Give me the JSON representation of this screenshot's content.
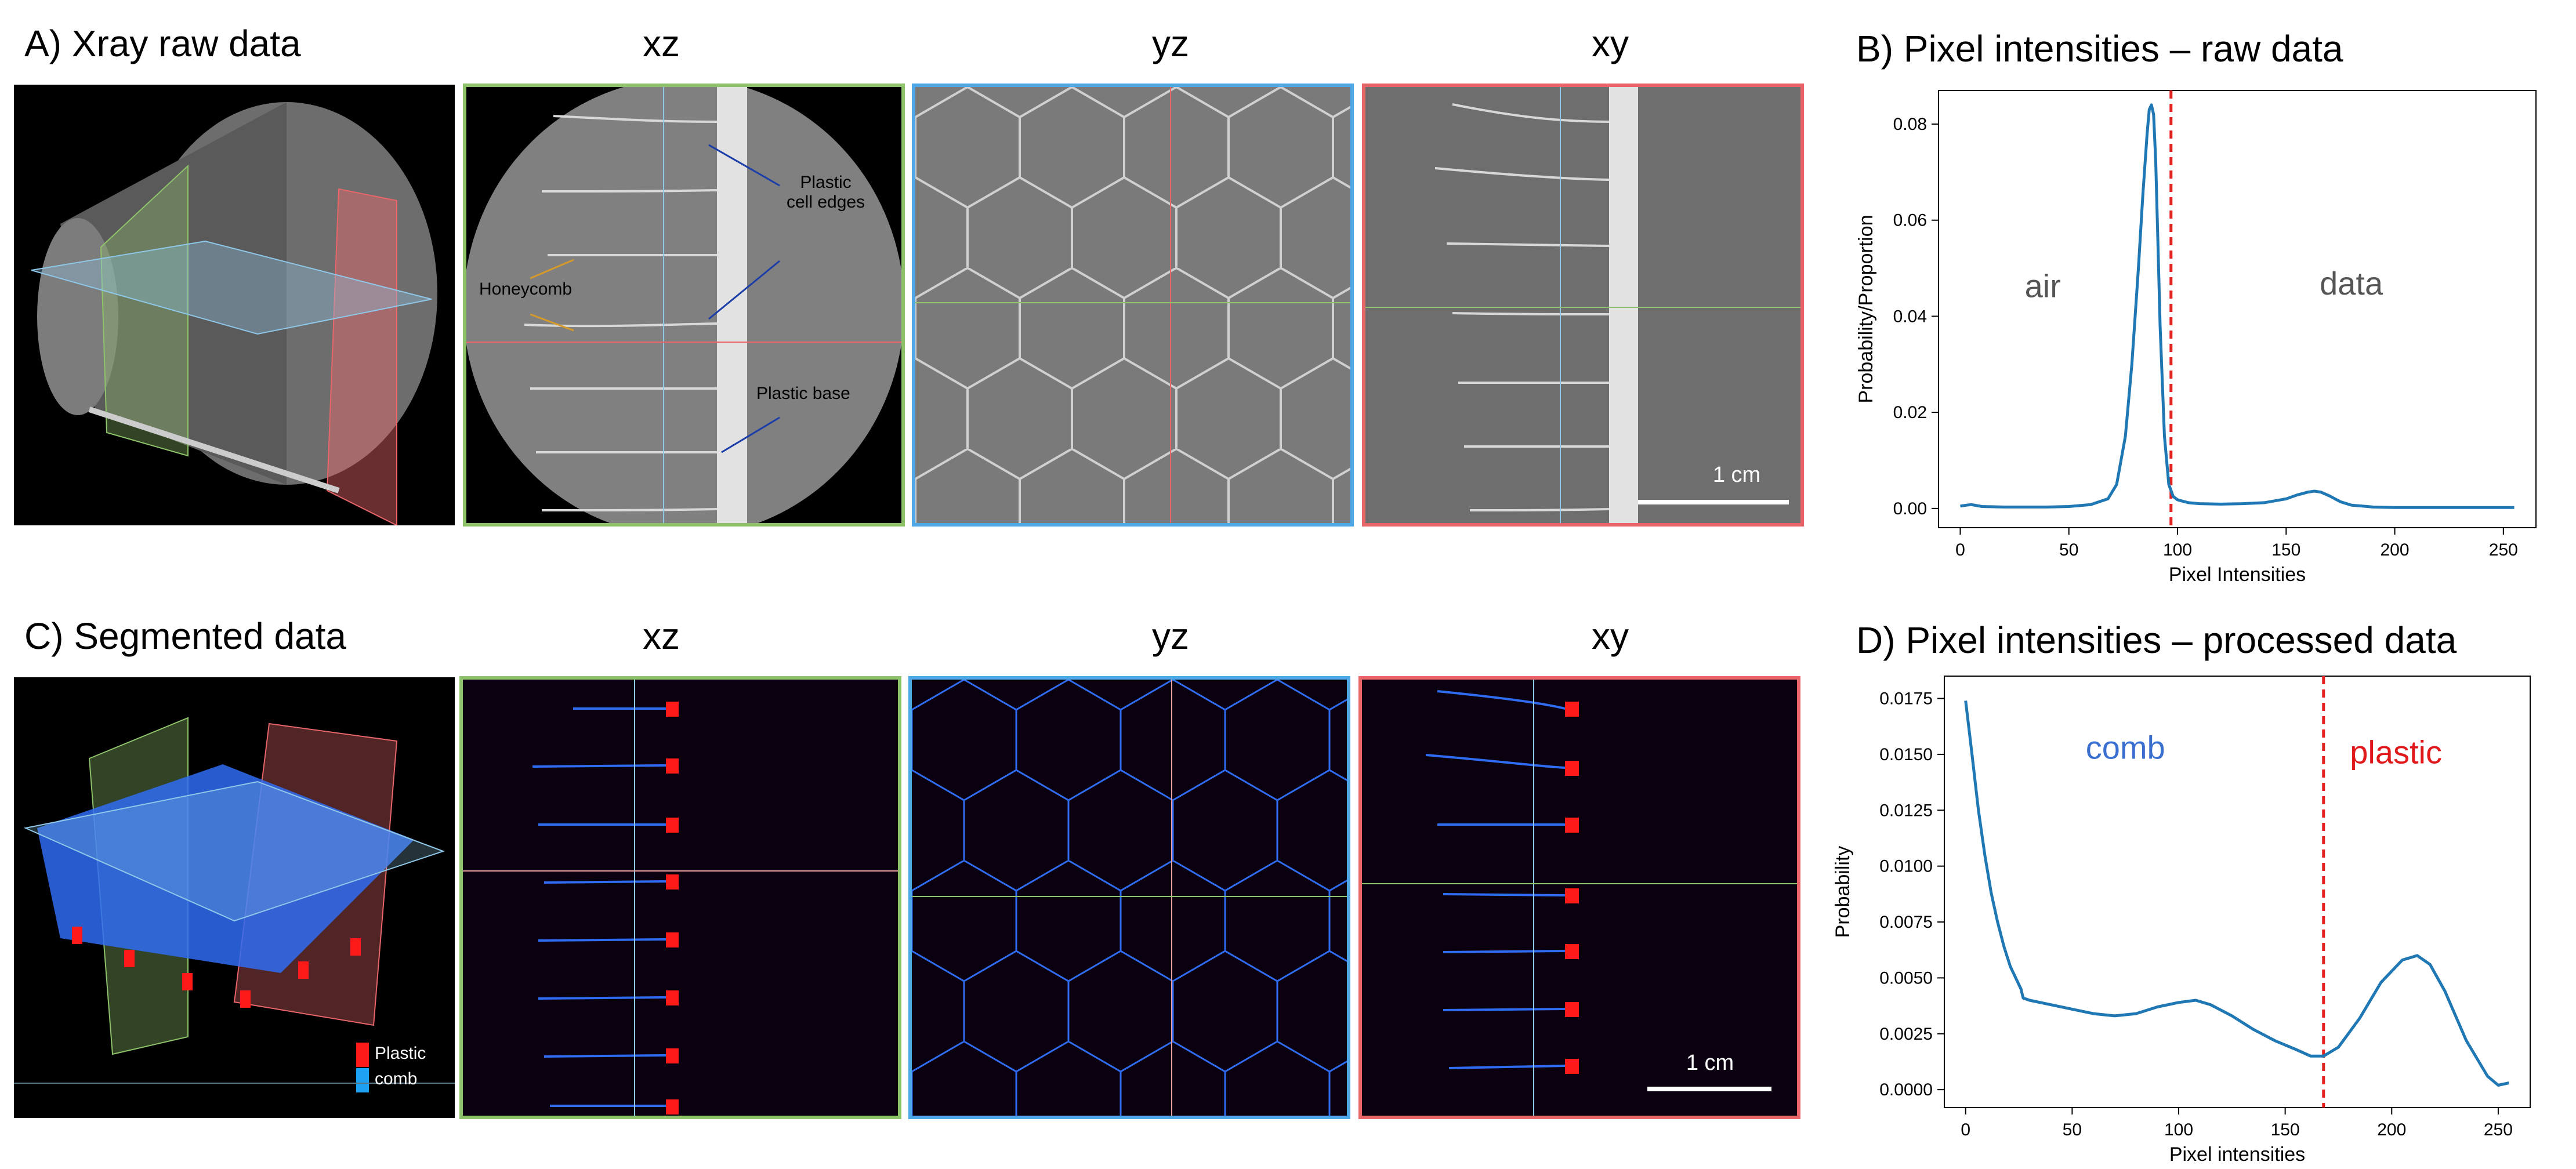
{
  "row_a": {
    "panel_title": "A) Xray raw data",
    "views": [
      "xz",
      "yz",
      "xy"
    ],
    "annotations": {
      "honeycomb": "Honeycomb",
      "plastic_cell_edges_1": "Plastic",
      "plastic_cell_edges_2": "cell edges",
      "plastic_base": "Plastic base",
      "scale": "1 cm"
    }
  },
  "row_c": {
    "panel_title": "C) Segmented data",
    "views": [
      "xz",
      "yz",
      "xy"
    ],
    "legend": {
      "plastic": "Plastic",
      "comb": "comb"
    },
    "scale": "1 cm"
  },
  "colors": {
    "frame_xz": "#8fc36b",
    "frame_yz": "#4ea8e8",
    "frame_xy": "#e8666a",
    "segmented_comb": "#2f6cf2",
    "segmented_plastic": "#ff1a1a",
    "line_series": "#1f77b4",
    "threshold": "#e32222"
  },
  "chart_data": [
    {
      "type": "line",
      "title": "B) Pixel intensities – raw data",
      "xlabel": "Pixel Intensities",
      "ylabel": "Probability/Proportion",
      "xlim": [
        -10,
        265
      ],
      "ylim": [
        -0.004,
        0.087
      ],
      "xticks": [
        0,
        50,
        100,
        150,
        200,
        250
      ],
      "yticks": [
        0.0,
        0.02,
        0.04,
        0.06,
        0.08
      ],
      "ytick_labels": [
        "0.00",
        "0.02",
        "0.04",
        "0.06",
        "0.08"
      ],
      "threshold_x": 97,
      "region_labels": [
        {
          "text": "air",
          "x": 38,
          "y": 0.044
        },
        {
          "text": "data",
          "x": 180,
          "y": 0.0445
        }
      ],
      "series": [
        {
          "x": [
            0,
            5,
            10,
            20,
            30,
            40,
            50,
            60,
            68,
            72,
            76,
            79,
            82,
            84,
            86,
            87,
            88,
            89,
            90,
            91,
            92,
            94,
            96,
            98,
            100,
            105,
            110,
            120,
            130,
            140,
            150,
            155,
            160,
            163,
            166,
            170,
            175,
            180,
            190,
            200,
            220,
            240,
            255
          ],
          "y": [
            0.0005,
            0.0008,
            0.0004,
            0.0003,
            0.0003,
            0.0003,
            0.0004,
            0.0008,
            0.002,
            0.005,
            0.015,
            0.03,
            0.05,
            0.065,
            0.078,
            0.083,
            0.084,
            0.082,
            0.072,
            0.055,
            0.038,
            0.015,
            0.005,
            0.0025,
            0.0018,
            0.0012,
            0.001,
            0.0009,
            0.001,
            0.0012,
            0.002,
            0.0028,
            0.0034,
            0.0036,
            0.0034,
            0.0026,
            0.0014,
            0.0007,
            0.0003,
            0.0002,
            0.0002,
            0.0002,
            0.0002
          ]
        }
      ]
    },
    {
      "type": "line",
      "title": "D) Pixel intensities – processed data",
      "xlabel": "Pixel intensities",
      "ylabel": "Probability",
      "xlim": [
        -10,
        265
      ],
      "ylim": [
        -0.0008,
        0.0185
      ],
      "xticks": [
        0,
        50,
        100,
        150,
        200,
        250
      ],
      "yticks": [
        0.0,
        0.0025,
        0.005,
        0.0075,
        0.01,
        0.0125,
        0.015,
        0.0175
      ],
      "ytick_labels": [
        "0.0000",
        "0.0025",
        "0.0050",
        "0.0075",
        "0.0100",
        "0.0125",
        "0.0150",
        "0.0175"
      ],
      "threshold_x": 168,
      "region_labels": [
        {
          "text": "comb",
          "x": 75,
          "y": 0.0148
        },
        {
          "text": "plastic",
          "x": 202,
          "y": 0.0146
        }
      ],
      "series": [
        {
          "x": [
            0,
            3,
            6,
            9,
            12,
            15,
            18,
            21,
            24,
            26,
            27,
            30,
            40,
            50,
            60,
            70,
            80,
            90,
            100,
            108,
            115,
            125,
            135,
            145,
            155,
            162,
            168,
            175,
            185,
            195,
            205,
            212,
            218,
            225,
            235,
            245,
            250,
            255
          ],
          "y": [
            0.0174,
            0.015,
            0.0125,
            0.0105,
            0.0088,
            0.0075,
            0.0064,
            0.0055,
            0.0049,
            0.0045,
            0.0041,
            0.004,
            0.0038,
            0.0036,
            0.0034,
            0.0033,
            0.0034,
            0.0037,
            0.0039,
            0.004,
            0.0038,
            0.0033,
            0.0027,
            0.0022,
            0.0018,
            0.0015,
            0.0015,
            0.0019,
            0.0032,
            0.0048,
            0.0058,
            0.006,
            0.0056,
            0.0044,
            0.0022,
            0.0006,
            0.0002,
            0.0003
          ]
        }
      ]
    }
  ]
}
